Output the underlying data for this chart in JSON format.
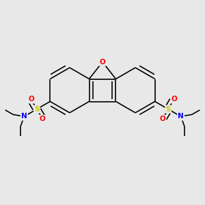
{
  "bg_color": "#e8e8e8",
  "atom_colors": {
    "O": "#ff0000",
    "S": "#cccc00",
    "N": "#0000ff",
    "C": "#000000"
  },
  "bond_color": "#000000",
  "bond_width": 1.2,
  "figsize": [
    3.0,
    3.0
  ],
  "dpi": 100
}
